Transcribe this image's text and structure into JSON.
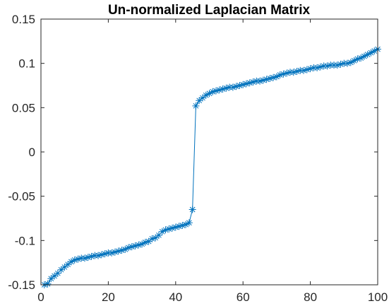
{
  "chart_data": {
    "type": "line",
    "title": "Un-normalized Laplacian Matrix",
    "xlabel": "",
    "ylabel": "",
    "xlim": [
      0,
      100
    ],
    "ylim": [
      -0.15,
      0.15
    ],
    "xticks": [
      0,
      20,
      40,
      60,
      80,
      100
    ],
    "xtick_labels": [
      "0",
      "20",
      "40",
      "60",
      "80",
      "100"
    ],
    "yticks": [
      -0.15,
      -0.1,
      -0.05,
      0,
      0.05,
      0.1,
      0.15
    ],
    "ytick_labels": [
      "-0.15",
      "-0.1",
      "-0.05",
      "0",
      "0.05",
      "0.1",
      "0.15"
    ],
    "grid": false,
    "marker": "asterisk",
    "line_color": "#0072bd",
    "series": [
      {
        "x": [
          1,
          2,
          3,
          4,
          5,
          6,
          7,
          8,
          9,
          10,
          11,
          12,
          13,
          14,
          15,
          16,
          17,
          18,
          19,
          20,
          21,
          22,
          23,
          24,
          25,
          26,
          27,
          28,
          29,
          30,
          31,
          32,
          33,
          34,
          35,
          36,
          37,
          38,
          39,
          40,
          41,
          42,
          43,
          44,
          45,
          46,
          47,
          48,
          49,
          50,
          51,
          52,
          53,
          54,
          55,
          56,
          57,
          58,
          59,
          60,
          61,
          62,
          63,
          64,
          65,
          66,
          67,
          68,
          69,
          70,
          71,
          72,
          73,
          74,
          75,
          76,
          77,
          78,
          79,
          80,
          81,
          82,
          83,
          84,
          85,
          86,
          87,
          88,
          89,
          90,
          91,
          92,
          93,
          94,
          95,
          96,
          97,
          98,
          99,
          100
        ],
        "values": [
          -0.15,
          -0.149,
          -0.143,
          -0.14,
          -0.137,
          -0.133,
          -0.13,
          -0.127,
          -0.124,
          -0.122,
          -0.121,
          -0.12,
          -0.12,
          -0.119,
          -0.118,
          -0.117,
          -0.117,
          -0.116,
          -0.115,
          -0.114,
          -0.114,
          -0.113,
          -0.112,
          -0.111,
          -0.11,
          -0.108,
          -0.107,
          -0.106,
          -0.105,
          -0.104,
          -0.102,
          -0.101,
          -0.098,
          -0.097,
          -0.094,
          -0.09,
          -0.088,
          -0.087,
          -0.086,
          -0.085,
          -0.084,
          -0.083,
          -0.082,
          -0.08,
          -0.065,
          0.052,
          0.058,
          0.061,
          0.064,
          0.066,
          0.068,
          0.069,
          0.07,
          0.071,
          0.072,
          0.073,
          0.073,
          0.074,
          0.075,
          0.076,
          0.077,
          0.078,
          0.079,
          0.08,
          0.08,
          0.081,
          0.082,
          0.083,
          0.084,
          0.085,
          0.087,
          0.088,
          0.089,
          0.09,
          0.09,
          0.091,
          0.092,
          0.092,
          0.093,
          0.094,
          0.095,
          0.095,
          0.096,
          0.097,
          0.097,
          0.098,
          0.098,
          0.098,
          0.099,
          0.1,
          0.1,
          0.101,
          0.103,
          0.105,
          0.106,
          0.108,
          0.11,
          0.112,
          0.114,
          0.116
        ]
      }
    ]
  }
}
